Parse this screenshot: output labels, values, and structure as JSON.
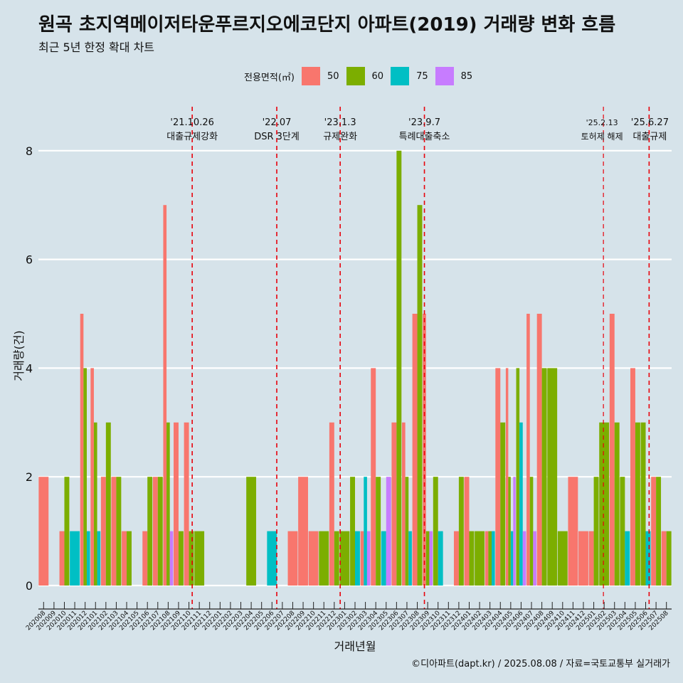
{
  "title": "원곡 초지역메이저타운푸르지오에코단지 아파트(2019) 거래량 변화 흐름",
  "subtitle": "최근 5년 한정 확대 차트",
  "caption": "©디아파트(dapt.kr) / 2025.08.08 / 자료=국토교통부 실거래가",
  "legend": {
    "title": "전용면적(㎡)",
    "items": [
      {
        "label": "50",
        "color": "#f8766d"
      },
      {
        "label": "60",
        "color": "#7cae00"
      },
      {
        "label": "75",
        "color": "#00bfc4"
      },
      {
        "label": "85",
        "color": "#c77cff"
      }
    ]
  },
  "chart_data": {
    "type": "bar",
    "xlabel": "거래년월",
    "ylabel": "거래량(건)",
    "ylim": [
      0,
      8.5
    ],
    "yticks": [
      0,
      2,
      4,
      6,
      8
    ],
    "grid": true,
    "categories": [
      "202008",
      "202009",
      "202010",
      "202011",
      "202012",
      "202101",
      "202102",
      "202103",
      "202104",
      "202105",
      "202106",
      "202107",
      "202108",
      "202109",
      "202110",
      "202111",
      "202112",
      "202201",
      "202202",
      "202203",
      "202204",
      "202205",
      "202206",
      "202207",
      "202208",
      "202209",
      "202210",
      "202211",
      "202212",
      "202301",
      "202302",
      "202303",
      "202304",
      "202305",
      "202306",
      "202307",
      "202308",
      "202309",
      "202310",
      "202311",
      "202312",
      "202401",
      "202402",
      "202403",
      "202404",
      "202405",
      "202406",
      "202407",
      "202408",
      "202409",
      "202410",
      "202411",
      "202412",
      "202501",
      "202502",
      "202503",
      "202504",
      "202505",
      "202506",
      "202507",
      "202508"
    ],
    "series": [
      {
        "name": "50",
        "values": [
          2,
          0,
          1,
          0,
          5,
          4,
          2,
          2,
          1,
          0,
          1,
          2,
          7,
          3,
          3,
          0,
          0,
          0,
          0,
          0,
          0,
          0,
          0,
          0,
          1,
          2,
          1,
          0,
          3,
          0,
          0,
          1,
          4,
          0,
          3,
          3,
          5,
          5,
          0,
          0,
          1,
          2,
          0,
          1,
          4,
          4,
          0,
          5,
          5,
          0,
          0,
          2,
          1,
          1,
          0,
          5,
          0,
          4,
          0,
          2,
          1
        ]
      },
      {
        "name": "60",
        "values": [
          0,
          0,
          2,
          0,
          4,
          3,
          3,
          2,
          1,
          0,
          2,
          2,
          3,
          1,
          1,
          1,
          0,
          0,
          0,
          0,
          2,
          0,
          0,
          0,
          0,
          0,
          0,
          1,
          1,
          1,
          2,
          0,
          2,
          0,
          8,
          2,
          7,
          1,
          2,
          0,
          2,
          1,
          1,
          1,
          3,
          2,
          4,
          2,
          4,
          4,
          1,
          0,
          0,
          2,
          3,
          3,
          2,
          3,
          3,
          2,
          1
        ]
      },
      {
        "name": "75",
        "values": [
          0,
          0,
          0,
          1,
          1,
          1,
          0,
          0,
          0,
          0,
          0,
          0,
          0,
          0,
          0,
          0,
          0,
          0,
          0,
          0,
          0,
          0,
          1,
          0,
          0,
          0,
          0,
          0,
          0,
          0,
          1,
          2,
          0,
          1,
          0,
          1,
          0,
          0,
          1,
          0,
          0,
          0,
          0,
          1,
          0,
          1,
          3,
          0,
          0,
          0,
          0,
          0,
          0,
          0,
          0,
          0,
          1,
          0,
          1,
          0,
          0
        ]
      },
      {
        "name": "85",
        "values": [
          0,
          0,
          0,
          0,
          0,
          0,
          0,
          0,
          0,
          0,
          0,
          0,
          1,
          0,
          0,
          0,
          0,
          0,
          0,
          0,
          0,
          0,
          0,
          0,
          0,
          0,
          0,
          0,
          0,
          0,
          0,
          1,
          0,
          2,
          0,
          0,
          0,
          1,
          0,
          0,
          0,
          0,
          0,
          0,
          0,
          2,
          1,
          1,
          0,
          0,
          0,
          0,
          0,
          0,
          0,
          0,
          0,
          0,
          0,
          0,
          0
        ]
      }
    ],
    "events": [
      {
        "date": "2021-10-26",
        "label_date": "'21.10.26",
        "label": "대출규제강화"
      },
      {
        "date": "2022-07-01",
        "label_date": "'22.07",
        "label": "DSR 3단계"
      },
      {
        "date": "2023-01-03",
        "label_date": "'23.1.3",
        "label": "규제완화"
      },
      {
        "date": "2023-09-07",
        "label_date": "'23.9.7",
        "label": "특례대출축소"
      },
      {
        "date": "2025-02-13",
        "label_date": "'25.2.13",
        "label": "토허제 해제"
      },
      {
        "date": "2025-06-27",
        "label_date": "'25.6.27",
        "label": "대출규제"
      }
    ]
  }
}
